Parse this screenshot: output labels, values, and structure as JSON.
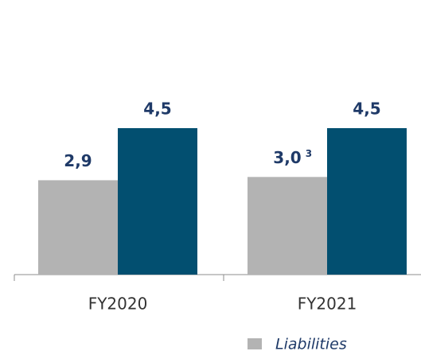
{
  "chart_data": {
    "type": "bar",
    "categories": [
      "FY2020",
      "FY2021"
    ],
    "series": [
      {
        "name": "Liabilities",
        "color": "#b3b3b3",
        "values": [
          2.9,
          3.0
        ],
        "value_labels": [
          "2,9",
          "3,0"
        ]
      },
      {
        "color": "#024f70",
        "values": [
          4.5,
          4.5
        ],
        "value_labels": [
          "4,5",
          "4,5"
        ]
      }
    ],
    "annotations": [
      "3"
    ],
    "ylim": [
      0,
      4.5
    ]
  }
}
